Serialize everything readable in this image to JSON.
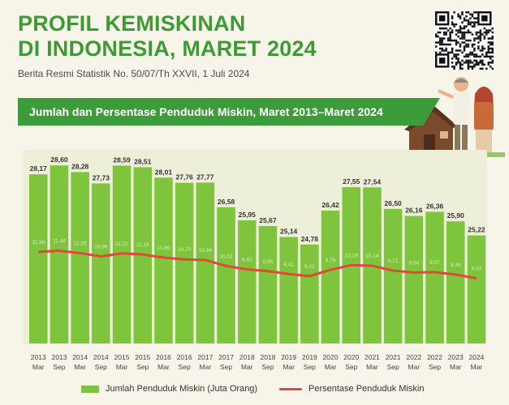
{
  "header": {
    "title_line1": "PROFIL KEMISKINAN",
    "title_line2": "DI INDONESIA, MARET 2024",
    "subtitle": "Berita Resmi Statistik No. 50/07/Th XXVII, 1 Juli 2024"
  },
  "banner": {
    "text": "Jumlah dan Persentase Penduduk Miskin, Maret 2013–Maret 2024"
  },
  "icons": [
    "qr-code-icon",
    "family-house-illustration"
  ],
  "colors": {
    "title": "#3e9a35",
    "banner": "#3d9c3a",
    "bar": "#7ec43d",
    "line": "#e2483a",
    "panel": "#edefd9"
  },
  "chart_data": {
    "type": "bar",
    "categories": [
      [
        "2013",
        "Mar"
      ],
      [
        "2013",
        "Sep"
      ],
      [
        "2014",
        "Mar"
      ],
      [
        "2014",
        "Sep"
      ],
      [
        "2015",
        "Mar"
      ],
      [
        "2015",
        "Sep"
      ],
      [
        "2016",
        "Mar"
      ],
      [
        "2016",
        "Sep"
      ],
      [
        "2017",
        "Mar"
      ],
      [
        "2017",
        "Sep"
      ],
      [
        "2018",
        "Mar"
      ],
      [
        "2018",
        "Sep"
      ],
      [
        "2019",
        "Mar"
      ],
      [
        "2019",
        "Sep"
      ],
      [
        "2020",
        "Mar"
      ],
      [
        "2020",
        "Sep"
      ],
      [
        "2021",
        "Mar"
      ],
      [
        "2021",
        "Sep"
      ],
      [
        "2022",
        "Mar"
      ],
      [
        "2022",
        "Sep"
      ],
      [
        "2023",
        "Mar"
      ],
      [
        "2024",
        "Mar"
      ]
    ],
    "series": [
      {
        "name": "Jumlah Penduduk Miskin (Juta Orang)",
        "type": "bar",
        "values": [
          28.17,
          28.6,
          28.28,
          27.73,
          28.59,
          28.51,
          28.01,
          27.76,
          27.77,
          26.58,
          25.95,
          25.67,
          25.14,
          24.78,
          26.42,
          27.55,
          27.54,
          26.5,
          26.16,
          26.36,
          25.9,
          25.22
        ],
        "labels": [
          "28,17",
          "28,60",
          "28,28",
          "27,73",
          "28,59",
          "28,51",
          "28,01",
          "27,76",
          "27,77",
          "26,58",
          "25,95",
          "25,67",
          "25,14",
          "24,78",
          "26,42",
          "27,55",
          "27,54",
          "26,50",
          "26,16",
          "26,36",
          "25,90",
          "25,22"
        ]
      },
      {
        "name": "Persentase Penduduk Miskin",
        "type": "line",
        "values": [
          11.36,
          11.46,
          11.25,
          10.96,
          11.22,
          11.13,
          10.86,
          10.7,
          10.64,
          10.12,
          9.82,
          9.66,
          9.41,
          9.22,
          9.78,
          10.19,
          10.14,
          9.71,
          9.54,
          9.57,
          9.36,
          9.03
        ],
        "labels": [
          "11,36",
          "11,46",
          "11,25",
          "10,96",
          "11,22",
          "11,13",
          "10,86",
          "10,70",
          "10,64",
          "10,12",
          "9,82",
          "9,66",
          "9,41",
          "9,22",
          "9,78",
          "10,19",
          "10,14",
          "9,71",
          "9,54",
          "9,57",
          "9,36",
          "9,03"
        ]
      }
    ],
    "legend_position": "bottom",
    "grid": false
  }
}
